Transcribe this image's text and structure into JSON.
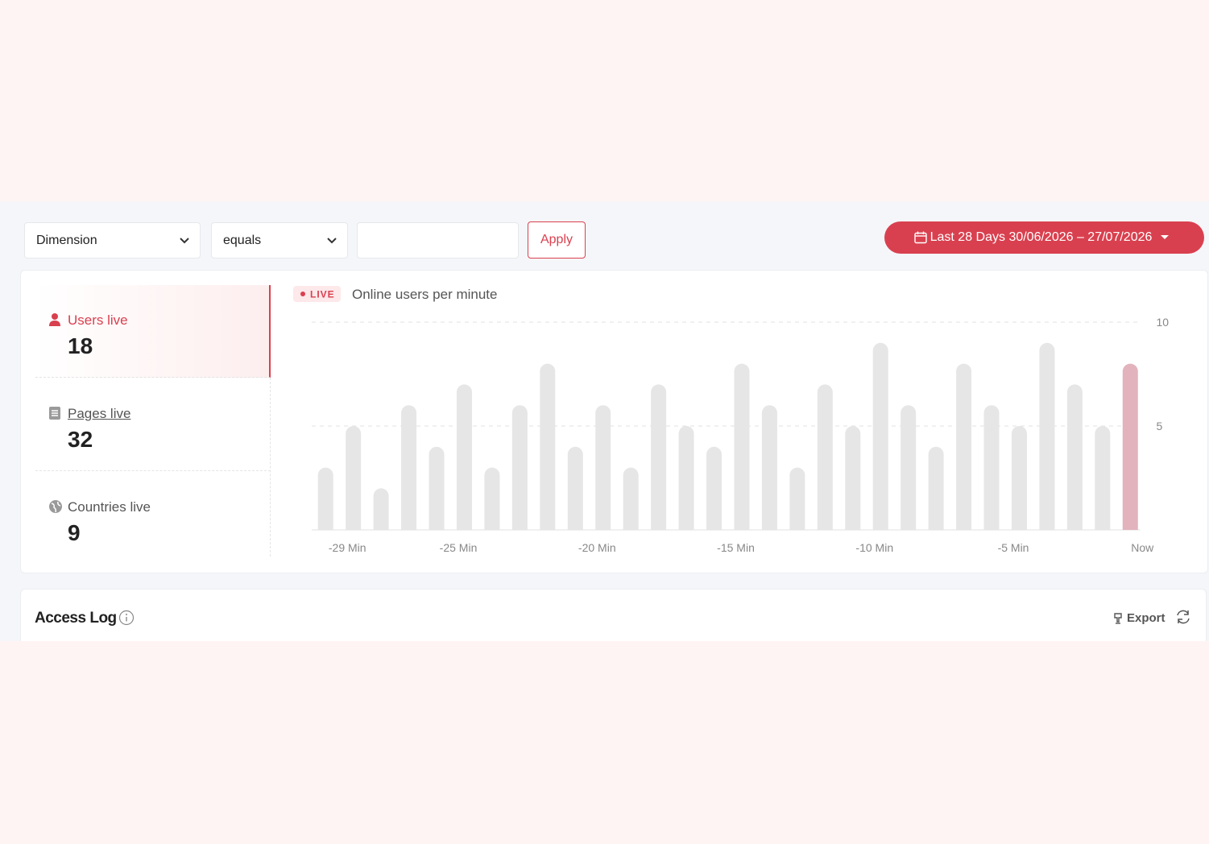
{
  "filters": {
    "dimension": "Dimension",
    "operator": "equals",
    "apply": "Apply"
  },
  "date_range": {
    "label": "Last 28 Days 30/06/2026 – 27/07/2026"
  },
  "stats": [
    {
      "label": "Users live",
      "value": 18
    },
    {
      "label": "Pages live",
      "value": 32
    },
    {
      "label": "Countries live",
      "value": 9
    }
  ],
  "chart_data": {
    "type": "bar",
    "badge": "LIVE",
    "title": "Online users per minute",
    "categories": [
      "-29 Min",
      null,
      null,
      null,
      "-25 Min",
      null,
      null,
      null,
      null,
      "-20 Min",
      null,
      null,
      null,
      null,
      "-15 Min",
      null,
      null,
      null,
      null,
      "-10 Min",
      null,
      null,
      null,
      null,
      "-5 Min",
      null,
      null,
      null,
      null,
      "Now"
    ],
    "values": [
      3,
      5,
      2,
      6,
      4,
      7,
      3,
      6,
      8,
      4,
      6,
      3,
      7,
      5,
      4,
      8,
      6,
      3,
      7,
      5,
      9,
      6,
      4,
      8,
      6,
      5,
      9,
      7,
      5,
      8
    ],
    "colors": [
      "#e6e6e6",
      "#e6e6e6",
      "#e6e6e6",
      "#e6e6e6",
      "#e6e6e6",
      "#e6e6e6",
      "#e6e6e6",
      "#e6e6e6",
      "#e6e6e6",
      "#e6e6e6",
      "#e6e6e6",
      "#e6e6e6",
      "#e6e6e6",
      "#e6e6e6",
      "#e6e6e6",
      "#e6e6e6",
      "#e6e6e6",
      "#e6e6e6",
      "#e6e6e6",
      "#e6e6e6",
      "#e6e6e6",
      "#e6e6e6",
      "#e6e6e6",
      "#e6e6e6",
      "#e6e6e6",
      "#e6e6e6",
      "#e6e6e6",
      "#e6e6e6",
      "#e6e6e6",
      "#e2b3bd"
    ],
    "ylim": [
      0,
      10
    ],
    "yticks": [
      5,
      10
    ],
    "grid": true
  },
  "access_log": {
    "title": "Access Log",
    "export": "Export"
  }
}
